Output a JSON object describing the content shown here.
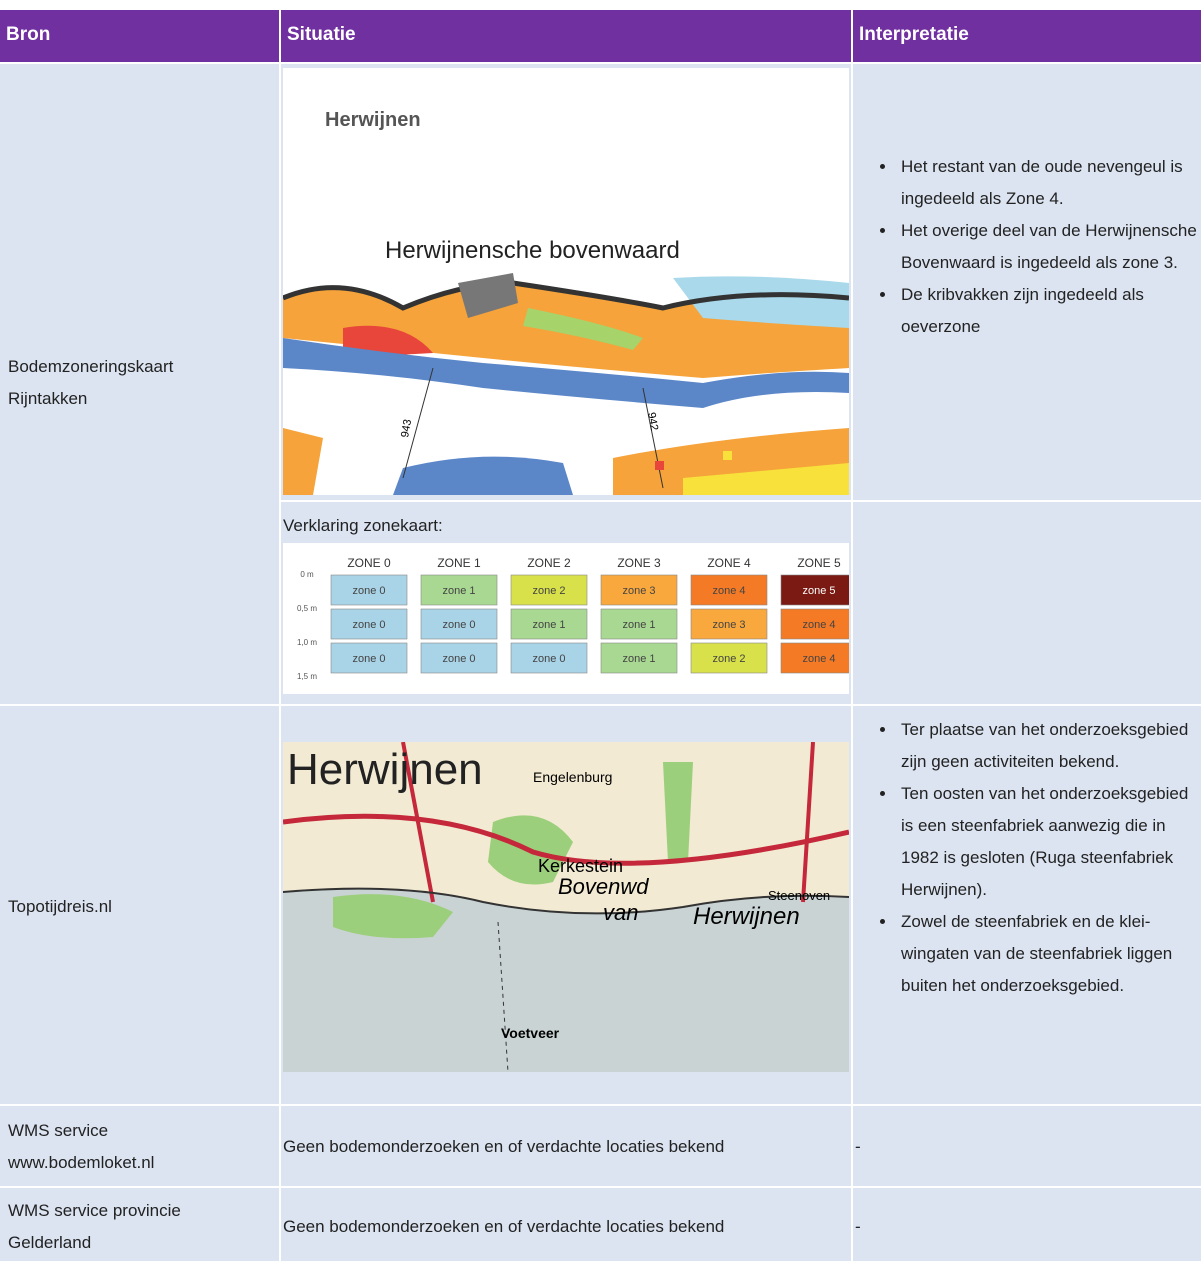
{
  "table": {
    "header": [
      "Bron",
      "Situatie",
      "Interpretatie"
    ],
    "rows": [
      {
        "bron": "Bodemzoneringskaart Rijntakken",
        "map_labels": [
          "Herwijnen",
          "Herwijnensche bovenwaard",
          "943",
          "942"
        ],
        "interpretatie": [
          "Het restant van de oude nevengeul is ingedeeld als Zone 4.",
          "Het overige deel van de Herwijnensche Bovenwaard is ingedeeld als zone 3.",
          "De kribvakken zijn ingedeeld als oeverzone"
        ]
      },
      {
        "caption": "Verklaring zonekaart:",
        "depths": [
          "0 m",
          "0,5 m",
          "1,0 m",
          "1,5 m"
        ],
        "zones": [
          "ZONE 0",
          "ZONE 1",
          "ZONE 2",
          "ZONE 3",
          "ZONE 4",
          "ZONE 5"
        ],
        "cells": [
          [
            {
              "label": "zone 0",
              "color": "#a9d3e6"
            },
            {
              "label": "zone 1",
              "color": "#a9d892"
            },
            {
              "label": "zone 2",
              "color": "#d8e04a"
            },
            {
              "label": "zone 3",
              "color": "#f9a83d"
            },
            {
              "label": "zone 4",
              "color": "#f47a25"
            },
            {
              "label": "zone 5",
              "color": "#7a1a12"
            }
          ],
          [
            {
              "label": "zone 0",
              "color": "#a9d3e6"
            },
            {
              "label": "zone 0",
              "color": "#a9d3e6"
            },
            {
              "label": "zone 1",
              "color": "#a9d892"
            },
            {
              "label": "zone 1",
              "color": "#a9d892"
            },
            {
              "label": "zone 3",
              "color": "#f9a83d"
            },
            {
              "label": "zone 4",
              "color": "#f47a25"
            }
          ],
          [
            {
              "label": "zone 0",
              "color": "#a9d3e6"
            },
            {
              "label": "zone 0",
              "color": "#a9d3e6"
            },
            {
              "label": "zone 0",
              "color": "#a9d3e6"
            },
            {
              "label": "zone 1",
              "color": "#a9d892"
            },
            {
              "label": "zone 2",
              "color": "#d8e04a"
            },
            {
              "label": "zone 4",
              "color": "#f47a25"
            }
          ]
        ]
      },
      {
        "bron": "Topotijdreis.nl",
        "map_labels": [
          "Herwijnen",
          "Engelenburg",
          "Kerkestein",
          "Bovenwd",
          "van",
          "Herwijnen",
          "Steenoven",
          "Voetveer"
        ],
        "interpretatie": [
          "Ter plaatse van het onderzoeksgebied zijn geen activiteiten bekend.",
          "Ten oosten van het onderzoeksgebied is een steenfabriek aanwezig die in 1982 is gesloten (Ruga steenfabriek Herwijnen).",
          "Zowel de steenfabriek en de klei-wingaten van de steenfabriek liggen buiten het onderzoeksgebied."
        ]
      },
      {
        "bron": "WMS service www.bodemloket.nl",
        "situatie": "Geen bodemonderzoeken en of verdachte locaties bekend",
        "interpretatie": "-"
      },
      {
        "bron": "WMS service provincie Gelderland",
        "situatie": "Geen bodemonderzoeken en of verdachte locaties bekend",
        "interpretatie": "-"
      }
    ]
  }
}
